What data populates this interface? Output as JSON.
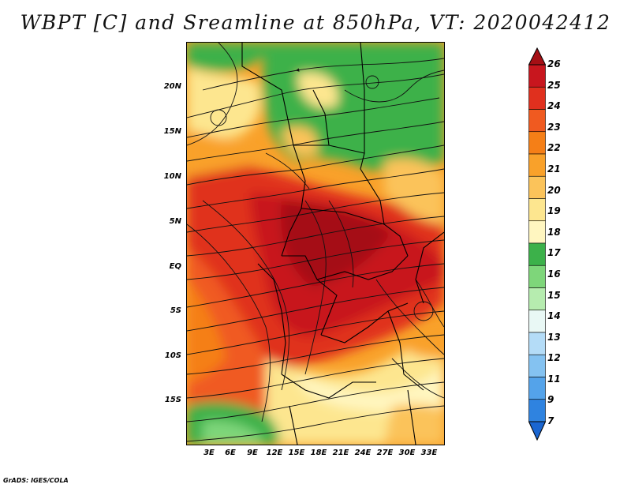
{
  "title": "WBPT [C] and Sreamline at 850hPa, VT: 2020042412",
  "credit": "GrADS: IGES/COLA",
  "map": {
    "lat_labels": [
      "20N",
      "15N",
      "10N",
      "5N",
      "EQ",
      "5S",
      "10S",
      "15S"
    ],
    "lon_labels": [
      "3E",
      "6E",
      "9E",
      "12E",
      "15E",
      "18E",
      "21E",
      "24E",
      "27E",
      "30E",
      "33E"
    ]
  },
  "colorbar": {
    "labels": [
      "26",
      "25",
      "24",
      "23",
      "22",
      "21",
      "20",
      "19",
      "18",
      "17",
      "16",
      "15",
      "14",
      "13",
      "12",
      "11",
      "9",
      "7"
    ],
    "colors": [
      "#a50f15",
      "#c8161e",
      "#e0301e",
      "#f05a20",
      "#f57f17",
      "#f9a12a",
      "#fbc35a",
      "#fde68f",
      "#fff6c0",
      "#3cb14a",
      "#7ed67a",
      "#b6ecaf",
      "#e9f8f5",
      "#b4dcf7",
      "#84c2f1",
      "#54a3ea",
      "#2f83e0",
      "#1a66d1"
    ]
  }
}
